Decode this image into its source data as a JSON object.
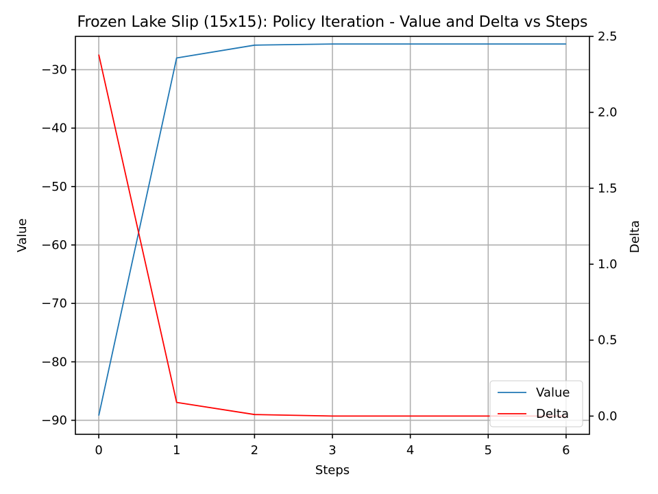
{
  "chart_data": {
    "type": "line",
    "title": "Frozen Lake Slip (15x15): Policy Iteration - Value and Delta vs Steps",
    "xlabel": "Steps",
    "ylabel": "Value",
    "y2label": "Delta",
    "x": [
      0,
      1,
      2,
      3,
      4,
      5,
      6
    ],
    "xlim": [
      -0.3,
      6.3
    ],
    "ylim": [
      -92.4,
      -24.3
    ],
    "y2lim": [
      -0.12,
      2.5
    ],
    "xticks": [
      "0",
      "1",
      "2",
      "3",
      "4",
      "5",
      "6"
    ],
    "yticks": [
      -90,
      -80,
      -70,
      -60,
      -50,
      -40,
      -30
    ],
    "ytick_labels": [
      "−90",
      "−80",
      "−70",
      "−60",
      "−50",
      "−40",
      "−30"
    ],
    "y2ticks": [
      0.0,
      0.5,
      1.0,
      1.5,
      2.0,
      2.5
    ],
    "y2tick_labels": [
      "0.0",
      "0.5",
      "1.0",
      "1.5",
      "2.0",
      "2.5"
    ],
    "grid": true,
    "legend_position": "bottom-right",
    "series": [
      {
        "name": "Value",
        "axis": "left",
        "color": "#1f77b4",
        "values": [
          -89.2,
          -28.0,
          -25.8,
          -25.6,
          -25.6,
          -25.6,
          -25.6
        ]
      },
      {
        "name": "Delta",
        "axis": "right",
        "color": "#ff0000",
        "values": [
          2.38,
          0.09,
          0.01,
          0.0,
          0.0,
          0.0,
          0.0
        ]
      }
    ]
  }
}
